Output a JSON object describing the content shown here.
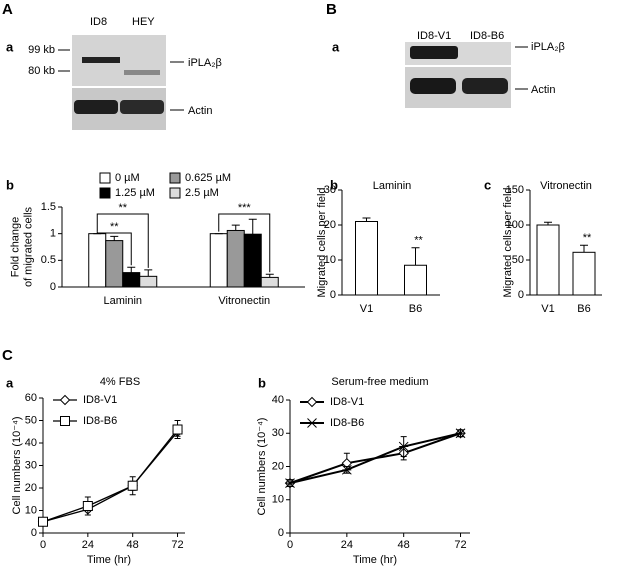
{
  "panels": {
    "A": "A",
    "Aa": "a",
    "B": "B",
    "Ba": "a",
    "Bb": "b",
    "Bc": "c",
    "Ab": "b",
    "C": "C",
    "Ca": "a",
    "Cb": "b",
    "blotA": {
      "lanes": [
        "ID8",
        "HEY"
      ],
      "markers": [
        "99 kb",
        "80 kb"
      ],
      "bands": [
        "iPLA₂β",
        "Actin"
      ]
    },
    "blotB": {
      "lanes": [
        "ID8-V1",
        "ID8-B6"
      ],
      "bands": [
        "iPLA₂β",
        "Actin"
      ]
    }
  },
  "chart_data": [
    {
      "type": "bar",
      "ylabel": [
        "Fold change",
        "of migrated cells"
      ],
      "categories": [
        "Laminin",
        "Vitronectin"
      ],
      "series": [
        {
          "name": "0 µM",
          "color": "#ffffff",
          "values": [
            1,
            1
          ],
          "errors": [
            0,
            0
          ]
        },
        {
          "name": "0.625 µM",
          "color": "#999999",
          "values": [
            0.87,
            1.06
          ],
          "errors": [
            0.08,
            0.1
          ]
        },
        {
          "name": "1.25 µM",
          "color": "#000000",
          "values": [
            0.27,
            0.99
          ],
          "errors": [
            0.1,
            0.28
          ]
        },
        {
          "name": "2.5 µM",
          "color": "#dddddd",
          "values": [
            0.2,
            0.18
          ],
          "errors": [
            0.12,
            0.06
          ]
        }
      ],
      "ylim": [
        0,
        1.5
      ],
      "yticks": [
        0,
        0.5,
        1,
        1.5
      ],
      "annotations": [
        "**",
        "**",
        "***"
      ]
    },
    {
      "type": "bar",
      "title": "Laminin",
      "ylabel": [
        "Migrated cells per field"
      ],
      "categories": [
        "V1",
        "B6"
      ],
      "values": [
        21,
        8.5
      ],
      "errors": [
        1,
        5
      ],
      "color": "#ffffff",
      "ylim": [
        0,
        30
      ],
      "yticks": [
        0,
        10,
        20,
        30
      ],
      "annotations": [
        "**"
      ]
    },
    {
      "type": "bar",
      "title": "Vitronectin",
      "ylabel": [
        "Migrated cells per field"
      ],
      "categories": [
        "V1",
        "B6"
      ],
      "values": [
        100,
        61
      ],
      "errors": [
        4,
        10
      ],
      "color": "#ffffff",
      "ylim": [
        0,
        150
      ],
      "yticks": [
        0,
        50,
        100,
        150
      ],
      "annotations": [
        "**"
      ]
    },
    {
      "type": "line",
      "title": "4% FBS",
      "xlabel": "Time (hr)",
      "ylabel": [
        "Cell numbers (10⁻⁴)"
      ],
      "x": [
        0,
        24,
        48,
        72
      ],
      "xlim": [
        0,
        76
      ],
      "xticks": [
        0,
        24,
        48,
        72
      ],
      "ylim": [
        0,
        60
      ],
      "yticks": [
        0,
        10,
        20,
        30,
        40,
        50,
        60
      ],
      "series": [
        {
          "name": "ID8-V1",
          "color": "#000000",
          "marker": "diamond",
          "values": [
            5,
            10.5,
            21,
            45
          ],
          "errors": [
            0.5,
            1,
            2,
            2
          ]
        },
        {
          "name": "ID8-B6",
          "color": "#000000",
          "marker": "square",
          "values": [
            5,
            12,
            21,
            46
          ],
          "errors": [
            0.5,
            4,
            4,
            4
          ]
        }
      ]
    },
    {
      "type": "line",
      "title": "Serum-free medium",
      "xlabel": "Time (hr)",
      "ylabel": [
        "Cell numbers (10⁻⁴)"
      ],
      "x": [
        0,
        24,
        48,
        72
      ],
      "xlim": [
        0,
        76
      ],
      "xticks": [
        0,
        24,
        48,
        72
      ],
      "ylim": [
        0,
        40
      ],
      "yticks": [
        0,
        10,
        20,
        30,
        40
      ],
      "series": [
        {
          "name": "ID8-V1",
          "color": "#000000",
          "marker": "diamond",
          "values": [
            15,
            21,
            24,
            30
          ],
          "errors": [
            1,
            3,
            2,
            1
          ]
        },
        {
          "name": "ID8-B6",
          "color": "#000000",
          "marker": "star",
          "values": [
            15,
            19,
            26,
            30
          ],
          "errors": [
            1,
            1,
            3,
            1
          ]
        }
      ]
    }
  ]
}
